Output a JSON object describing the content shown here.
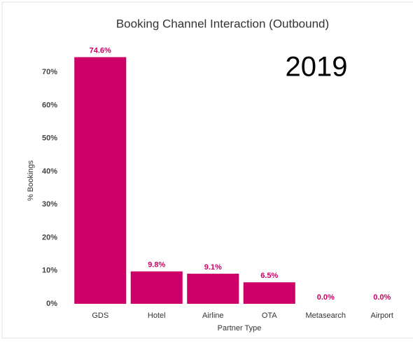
{
  "chart_data": {
    "type": "bar",
    "title": "Booking Channel Interaction (Outbound)",
    "annotation": "2019",
    "y_label": "% Bookings",
    "x_label": "Partner Type",
    "categories": [
      "GDS",
      "Hotel",
      "Airline",
      "OTA",
      "Metasearch",
      "Airport"
    ],
    "values": [
      74.6,
      9.8,
      9.1,
      6.5,
      0.0,
      0.0
    ],
    "value_labels": [
      "74.6%",
      "9.8%",
      "9.1%",
      "6.5%",
      "0.0%",
      "0.0%"
    ],
    "color": "#cc0066",
    "ylim": [
      0,
      76
    ],
    "yticks": [
      {
        "value": 0,
        "label": "0%"
      },
      {
        "value": 10,
        "label": "10%"
      },
      {
        "value": 20,
        "label": "20%"
      },
      {
        "value": 30,
        "label": "30%"
      },
      {
        "value": 40,
        "label": "40%"
      },
      {
        "value": 50,
        "label": "50%"
      },
      {
        "value": 60,
        "label": "60%"
      },
      {
        "value": 70,
        "label": "70%"
      }
    ],
    "grid": false
  }
}
